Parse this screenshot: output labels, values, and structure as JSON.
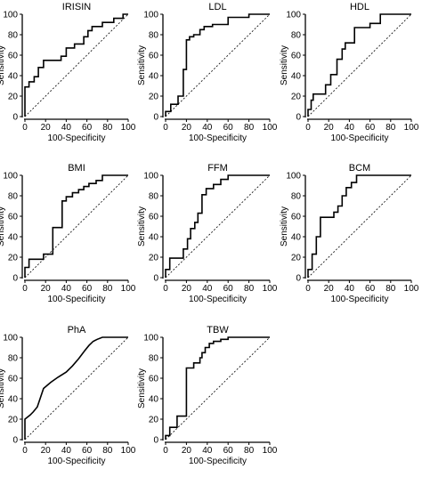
{
  "chart_data": [
    {
      "type": "line",
      "title": "IRISIN",
      "xlabel": "100-Specificity",
      "ylabel": "Sensitivity",
      "xlim": [
        0,
        100
      ],
      "ylim": [
        0,
        100
      ],
      "xticks": [
        0,
        20,
        40,
        60,
        80,
        100
      ],
      "yticks": [
        0,
        20,
        40,
        60,
        80,
        100
      ],
      "reference_line": "diagonal",
      "series": [
        {
          "x": [
            0,
            0,
            4,
            4,
            9,
            9,
            13,
            13,
            18,
            18,
            35,
            35,
            40,
            40,
            48,
            48,
            57,
            57,
            61,
            61,
            65,
            65,
            75,
            75,
            86,
            86,
            95,
            95,
            100,
            100
          ],
          "y": [
            0,
            29,
            29,
            34,
            34,
            39,
            39,
            48,
            48,
            55,
            55,
            59,
            59,
            67,
            67,
            71,
            71,
            78,
            78,
            84,
            84,
            88,
            88,
            92,
            92,
            96,
            96,
            100,
            100,
            100
          ]
        }
      ]
    },
    {
      "type": "line",
      "title": "LDL",
      "xlabel": "100-Specificity",
      "ylabel": "Sensitivity",
      "xlim": [
        0,
        100
      ],
      "ylim": [
        0,
        100
      ],
      "xticks": [
        0,
        20,
        40,
        60,
        80,
        100
      ],
      "yticks": [
        0,
        20,
        40,
        60,
        80,
        100
      ],
      "reference_line": "diagonal",
      "series": [
        {
          "x": [
            0,
            0,
            5,
            5,
            12,
            12,
            17,
            17,
            20,
            20,
            23,
            23,
            27,
            27,
            33,
            33,
            37,
            37,
            45,
            45,
            60,
            60,
            80,
            80,
            100
          ],
          "y": [
            0,
            5,
            5,
            12,
            12,
            20,
            20,
            46,
            46,
            75,
            75,
            78,
            78,
            80,
            80,
            85,
            85,
            88,
            88,
            90,
            90,
            97,
            97,
            100,
            100
          ]
        }
      ]
    },
    {
      "type": "line",
      "title": "HDL",
      "xlabel": "100-Specificity",
      "ylabel": "Sensitivity",
      "xlim": [
        0,
        100
      ],
      "ylim": [
        0,
        100
      ],
      "xticks": [
        0,
        20,
        40,
        60,
        80,
        100
      ],
      "yticks": [
        0,
        20,
        40,
        60,
        80,
        100
      ],
      "reference_line": "diagonal",
      "series": [
        {
          "x": [
            0,
            0,
            3,
            3,
            5,
            5,
            17,
            17,
            22,
            22,
            28,
            28,
            33,
            33,
            36,
            36,
            45,
            45,
            60,
            60,
            70,
            70,
            100
          ],
          "y": [
            0,
            7,
            7,
            16,
            16,
            22,
            22,
            31,
            31,
            41,
            41,
            56,
            56,
            66,
            66,
            72,
            72,
            87,
            87,
            91,
            91,
            100,
            100
          ]
        }
      ]
    },
    {
      "type": "line",
      "title": "BMI",
      "xlabel": "100-Specificity",
      "ylabel": "Sensitivity",
      "xlim": [
        0,
        100
      ],
      "ylim": [
        0,
        100
      ],
      "xticks": [
        0,
        20,
        40,
        60,
        80,
        100
      ],
      "yticks": [
        0,
        20,
        40,
        60,
        80,
        100
      ],
      "reference_line": "diagonal",
      "series": [
        {
          "x": [
            0,
            0,
            4,
            4,
            18,
            18,
            27,
            27,
            36,
            36,
            40,
            40,
            46,
            46,
            52,
            52,
            57,
            57,
            62,
            62,
            69,
            69,
            75,
            75,
            100
          ],
          "y": [
            0,
            10,
            10,
            18,
            18,
            23,
            23,
            49,
            49,
            75,
            75,
            79,
            79,
            83,
            83,
            86,
            86,
            89,
            89,
            92,
            92,
            95,
            95,
            100,
            100
          ]
        }
      ]
    },
    {
      "type": "line",
      "title": "FFM",
      "xlabel": "100-Specificity",
      "ylabel": "Sensitivity",
      "xlim": [
        0,
        100
      ],
      "ylim": [
        0,
        100
      ],
      "xticks": [
        0,
        20,
        40,
        60,
        80,
        100
      ],
      "yticks": [
        0,
        20,
        40,
        60,
        80,
        100
      ],
      "reference_line": "diagonal",
      "series": [
        {
          "x": [
            0,
            0,
            4,
            4,
            17,
            17,
            21,
            21,
            24,
            24,
            28,
            28,
            31,
            31,
            35,
            35,
            39,
            39,
            46,
            46,
            53,
            53,
            60,
            60,
            100
          ],
          "y": [
            0,
            8,
            8,
            19,
            19,
            28,
            28,
            38,
            38,
            48,
            48,
            54,
            54,
            63,
            63,
            81,
            81,
            87,
            87,
            91,
            91,
            96,
            96,
            100,
            100
          ]
        }
      ]
    },
    {
      "type": "line",
      "title": "BCM",
      "xlabel": "100-Specificity",
      "ylabel": "Sensitivity",
      "xlim": [
        0,
        100
      ],
      "ylim": [
        0,
        100
      ],
      "xticks": [
        0,
        20,
        40,
        60,
        80,
        100
      ],
      "yticks": [
        0,
        20,
        40,
        60,
        80,
        100
      ],
      "reference_line": "diagonal",
      "series": [
        {
          "x": [
            0,
            0,
            4,
            4,
            8,
            8,
            12,
            12,
            25,
            25,
            29,
            29,
            33,
            33,
            37,
            37,
            42,
            42,
            47,
            47,
            100
          ],
          "y": [
            0,
            8,
            8,
            23,
            23,
            40,
            40,
            59,
            59,
            64,
            64,
            70,
            70,
            80,
            80,
            88,
            88,
            93,
            93,
            100,
            100
          ]
        }
      ]
    },
    {
      "type": "line",
      "title": "PhA",
      "xlabel": "100-Specificity",
      "ylabel": "Sensitivity",
      "xlim": [
        0,
        100
      ],
      "ylim": [
        0,
        100
      ],
      "xticks": [
        0,
        20,
        40,
        60,
        80,
        100
      ],
      "yticks": [
        0,
        20,
        40,
        60,
        80,
        100
      ],
      "reference_line": "diagonal",
      "series": [
        {
          "x": [
            0,
            0,
            5,
            8,
            12,
            18,
            25,
            32,
            40,
            46,
            52,
            58,
            62,
            66,
            70,
            75,
            80,
            100
          ],
          "y": [
            0,
            20,
            24,
            27,
            32,
            50,
            56,
            61,
            66,
            72,
            79,
            87,
            92,
            96,
            98,
            100,
            100,
            100
          ]
        }
      ]
    },
    {
      "type": "line",
      "title": "TBW",
      "xlabel": "100-Specificity",
      "ylabel": "Sensitivity",
      "xlim": [
        0,
        100
      ],
      "ylim": [
        0,
        100
      ],
      "xticks": [
        0,
        20,
        40,
        60,
        80,
        100
      ],
      "yticks": [
        0,
        20,
        40,
        60,
        80,
        100
      ],
      "reference_line": "diagonal",
      "series": [
        {
          "x": [
            0,
            0,
            4,
            4,
            11,
            11,
            20,
            20,
            27,
            27,
            33,
            33,
            35,
            35,
            38,
            38,
            42,
            42,
            46,
            46,
            53,
            53,
            60,
            60,
            100
          ],
          "y": [
            0,
            4,
            4,
            12,
            12,
            23,
            23,
            70,
            70,
            75,
            75,
            80,
            80,
            85,
            85,
            90,
            90,
            94,
            94,
            96,
            96,
            98,
            98,
            100,
            100
          ]
        }
      ]
    }
  ]
}
